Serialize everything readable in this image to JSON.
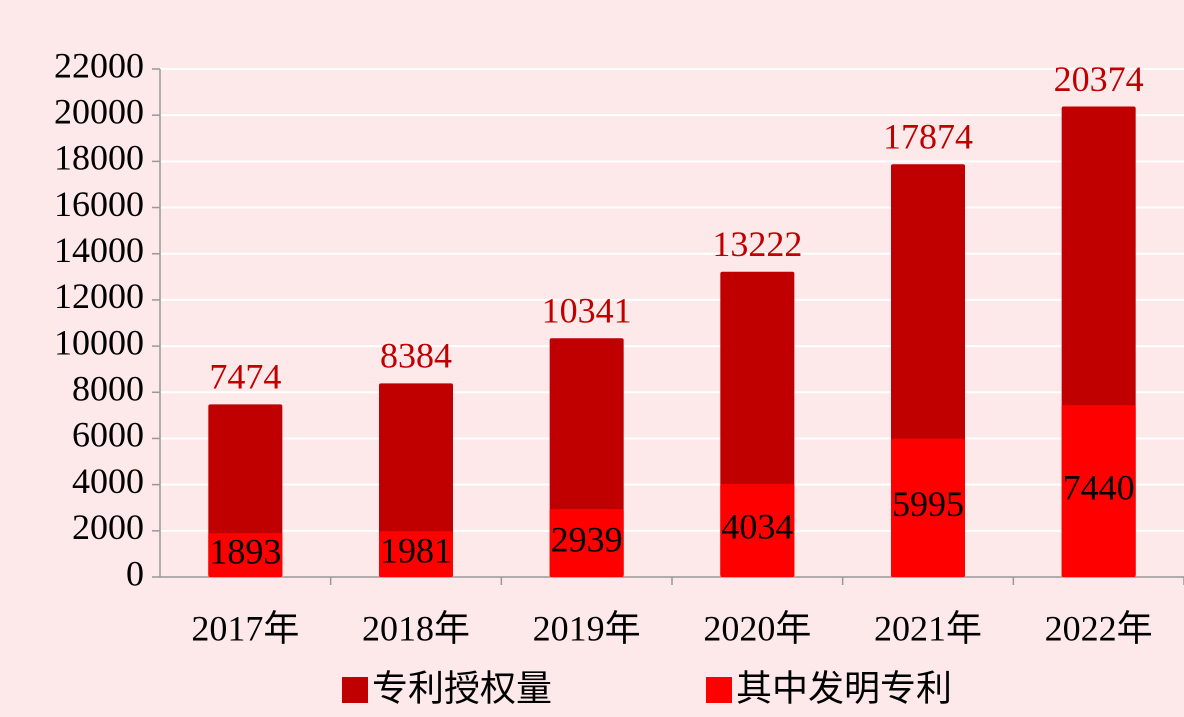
{
  "chart_data": {
    "type": "bar",
    "barmode": "overlay",
    "categories": [
      "2017年",
      "2018年",
      "2019年",
      "2020年",
      "2021年",
      "2022年"
    ],
    "series": [
      {
        "name": "专利授权量",
        "color": "#c00000",
        "label_color": "#c00000",
        "values": [
          7474,
          8384,
          10341,
          13222,
          17874,
          20374
        ]
      },
      {
        "name": "其中发明专利",
        "color": "#ff0000",
        "label_color": "#000000",
        "values": [
          1893,
          1981,
          2939,
          4034,
          5995,
          7440
        ]
      }
    ],
    "ylim": [
      0,
      22000
    ],
    "yticks": [
      0,
      2000,
      4000,
      6000,
      8000,
      10000,
      12000,
      14000,
      16000,
      18000,
      20000,
      22000
    ],
    "grid": true,
    "legend": "bottom"
  }
}
